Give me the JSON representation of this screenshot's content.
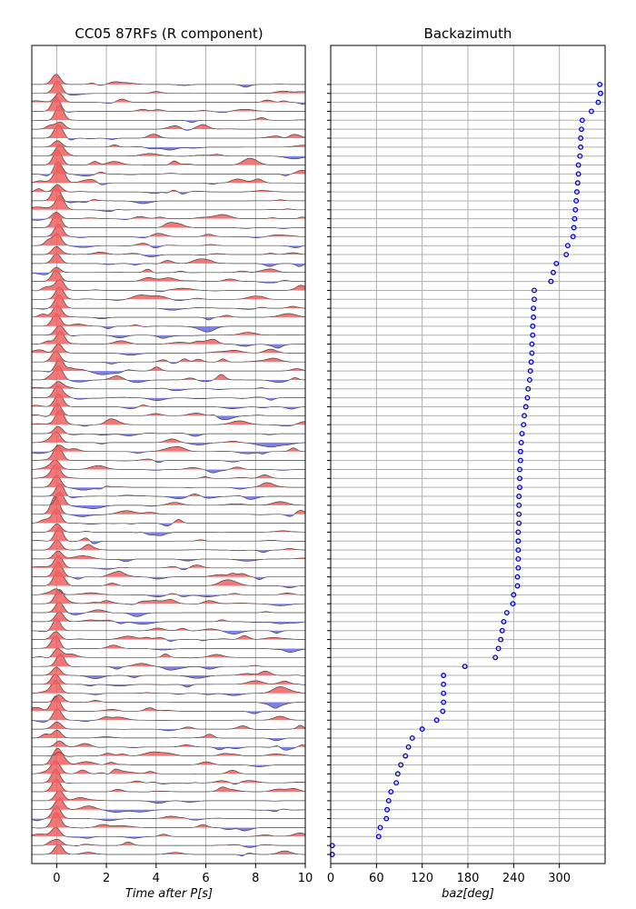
{
  "chart_data": [
    {
      "type": "area",
      "title": "CC05 87RFs (R component)",
      "xlabel": "Time after P[s]",
      "ylabel": "",
      "xlim": [
        -1,
        10
      ],
      "xticks": [
        0,
        2,
        4,
        6,
        8,
        10
      ],
      "xtick_labels": [
        "0",
        "2",
        "4",
        "6",
        "8",
        "10"
      ],
      "grid": "vertical",
      "trace_count": 87,
      "fill_colors": {
        "positive": "#f06060",
        "negative": "#6a6ae8"
      },
      "trace_color": "#444444"
    },
    {
      "type": "scatter",
      "title": "Backazimuth",
      "xlabel": "baz[deg]",
      "ylabel": "",
      "xlim": [
        0,
        360
      ],
      "xticks": [
        0,
        60,
        120,
        180,
        240,
        300
      ],
      "xtick_labels": [
        "0",
        "60",
        "120",
        "180",
        "240",
        "300"
      ],
      "grid": "both",
      "marker_color": "#0000cc",
      "baz_values": [
        2,
        2,
        63,
        65,
        73,
        74,
        76,
        79,
        86,
        88,
        92,
        98,
        102,
        107,
        120,
        139,
        147,
        148,
        148,
        148,
        148,
        176,
        216,
        220,
        223,
        225,
        227,
        231,
        239,
        240,
        245,
        245,
        246,
        246,
        246,
        246,
        246,
        247,
        247,
        247,
        247,
        248,
        248,
        248,
        249,
        249,
        250,
        251,
        253,
        254,
        256,
        258,
        259,
        261,
        262,
        263,
        264,
        264,
        265,
        265,
        266,
        266,
        267,
        267,
        289,
        292,
        296,
        309,
        311,
        318,
        319,
        320,
        321,
        322,
        323,
        324,
        325,
        325,
        327,
        328,
        328,
        329,
        330,
        342,
        351,
        354,
        353
      ]
    }
  ]
}
